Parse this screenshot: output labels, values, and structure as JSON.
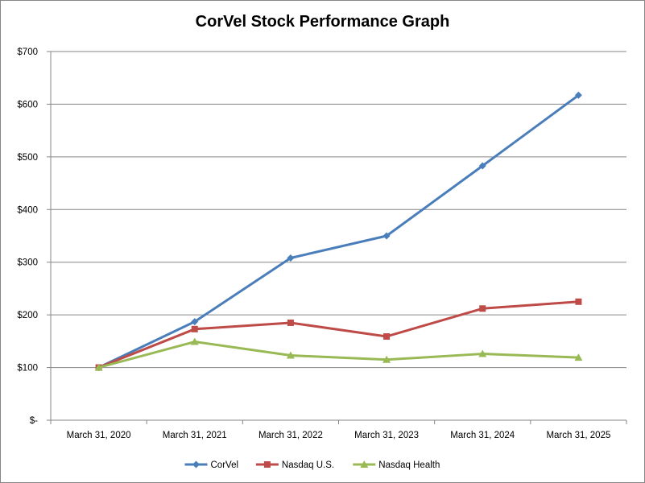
{
  "chart_data": {
    "type": "line",
    "title": "CorVel Stock Performance Graph",
    "xlabel": "",
    "ylabel": "",
    "categories": [
      "March 31, 2020",
      "March 31, 2021",
      "March 31, 2022",
      "March 31, 2023",
      "March 31, 2024",
      "March 31, 2025"
    ],
    "ylim": [
      0,
      700
    ],
    "yticks": [
      0,
      100,
      200,
      300,
      400,
      500,
      600,
      700
    ],
    "ytick_labels": [
      "$-",
      "$100",
      "$200",
      "$300",
      "$400",
      "$500",
      "$600",
      "$700"
    ],
    "grid": true,
    "legend": "bottom",
    "series": [
      {
        "name": "CorVel",
        "color": "#4a7ebb",
        "marker": "diamond",
        "values": [
          100,
          187,
          308,
          350,
          483,
          617
        ]
      },
      {
        "name": "Nasdaq U.S.",
        "color": "#be4b48",
        "marker": "square",
        "values": [
          100,
          173,
          185,
          159,
          212,
          225
        ]
      },
      {
        "name": "Nasdaq Health",
        "color": "#98b954",
        "marker": "triangle",
        "values": [
          100,
          149,
          123,
          115,
          126,
          119
        ]
      }
    ]
  }
}
